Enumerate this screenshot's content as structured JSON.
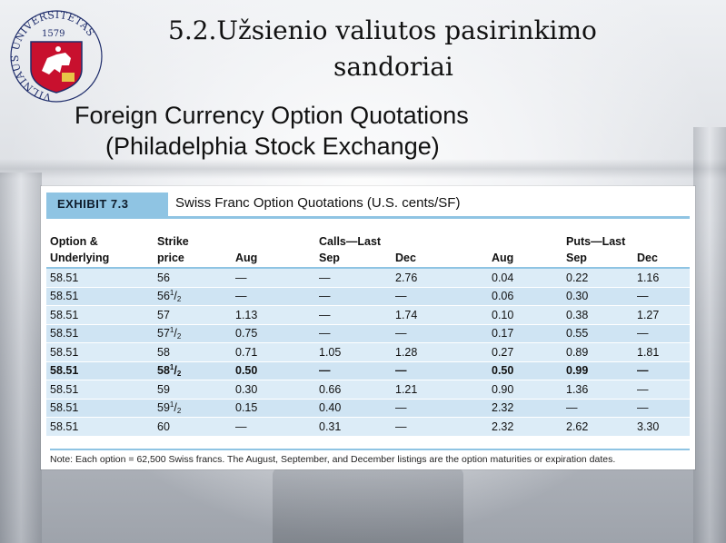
{
  "slide": {
    "title_lt_line1": "5.2.Užsienio valiutos pasirinkimo",
    "title_lt_line2": "sandoriai",
    "title_en_line1": "Foreign Currency Option Quotations",
    "title_en_line2": "(Philadelphia Stock Exchange)"
  },
  "logo": {
    "ring_text": "VILNIAUS UNIVERSITETAS",
    "year": "1579",
    "icon": "university-seal-icon"
  },
  "exhibit": {
    "tag": "EXHIBIT 7.3",
    "caption": "Swiss Franc Option Quotations (U.S. cents/SF)",
    "headers_top": [
      "Option &",
      "Strike",
      "",
      "Calls—Last",
      "",
      "",
      "Puts—Last",
      ""
    ],
    "headers_bottom": [
      "Underlying",
      "price",
      "Aug",
      "Sep",
      "Dec",
      "Aug",
      "Sep",
      "Dec"
    ],
    "rows": [
      {
        "underlying": "58.51",
        "strike_whole": "56",
        "strike_frac": false,
        "call_aug": "—",
        "call_sep": "—",
        "call_dec": "2.76",
        "put_aug": "0.04",
        "put_sep": "0.22",
        "put_dec": "1.16",
        "bold": false
      },
      {
        "underlying": "58.51",
        "strike_whole": "56",
        "strike_frac": true,
        "call_aug": "—",
        "call_sep": "—",
        "call_dec": "—",
        "put_aug": "0.06",
        "put_sep": "0.30",
        "put_dec": "—",
        "bold": false
      },
      {
        "underlying": "58.51",
        "strike_whole": "57",
        "strike_frac": false,
        "call_aug": "1.13",
        "call_sep": "—",
        "call_dec": "1.74",
        "put_aug": "0.10",
        "put_sep": "0.38",
        "put_dec": "1.27",
        "bold": false
      },
      {
        "underlying": "58.51",
        "strike_whole": "57",
        "strike_frac": true,
        "call_aug": "0.75",
        "call_sep": "—",
        "call_dec": "—",
        "put_aug": "0.17",
        "put_sep": "0.55",
        "put_dec": "—",
        "bold": false
      },
      {
        "underlying": "58.51",
        "strike_whole": "58",
        "strike_frac": false,
        "call_aug": "0.71",
        "call_sep": "1.05",
        "call_dec": "1.28",
        "put_aug": "0.27",
        "put_sep": "0.89",
        "put_dec": "1.81",
        "bold": false
      },
      {
        "underlying": "58.51",
        "strike_whole": "58",
        "strike_frac": true,
        "call_aug": "0.50",
        "call_sep": "—",
        "call_dec": "—",
        "put_aug": "0.50",
        "put_sep": "0.99",
        "put_dec": "—",
        "bold": true
      },
      {
        "underlying": "58.51",
        "strike_whole": "59",
        "strike_frac": false,
        "call_aug": "0.30",
        "call_sep": "0.66",
        "call_dec": "1.21",
        "put_aug": "0.90",
        "put_sep": "1.36",
        "put_dec": "—",
        "bold": false
      },
      {
        "underlying": "58.51",
        "strike_whole": "59",
        "strike_frac": true,
        "call_aug": "0.15",
        "call_sep": "0.40",
        "call_dec": "—",
        "put_aug": "2.32",
        "put_sep": "—",
        "put_dec": "—",
        "bold": false
      },
      {
        "underlying": "58.51",
        "strike_whole": "60",
        "strike_frac": false,
        "call_aug": "—",
        "call_sep": "0.31",
        "call_dec": "—",
        "put_aug": "2.32",
        "put_sep": "2.62",
        "put_dec": "3.30",
        "bold": false
      }
    ],
    "fraction_num": "1",
    "fraction_den": "2",
    "note": "Note: Each option = 62,500 Swiss francs. The August, September, and December listings are the option maturities or expiration dates."
  },
  "colors": {
    "accent": "#8fc4e3",
    "row_light": "#dcecf7",
    "row_dark": "#cfe4f3",
    "logo_red": "#c8102e",
    "logo_blue": "#1f2d6b"
  }
}
